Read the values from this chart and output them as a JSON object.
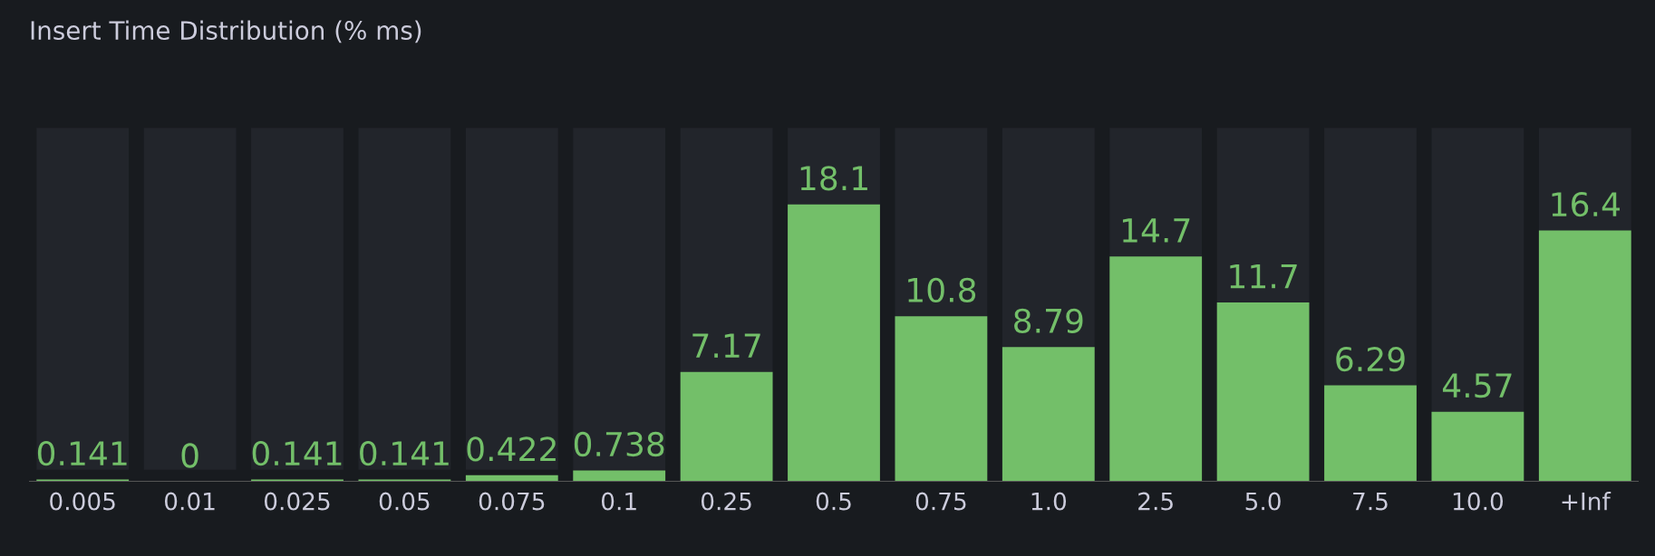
{
  "chart_data": {
    "type": "bar",
    "title": "Insert Time Distribution (% ms)",
    "categories": [
      "0.005",
      "0.01",
      "0.025",
      "0.05",
      "0.075",
      "0.1",
      "0.25",
      "0.5",
      "0.75",
      "1.0",
      "2.5",
      "5.0",
      "7.5",
      "10.0",
      "+Inf"
    ],
    "values": [
      0.141,
      0,
      0.141,
      0.141,
      0.422,
      0.738,
      7.17,
      18.1,
      10.8,
      8.79,
      14.7,
      11.7,
      6.29,
      4.57,
      16.4
    ],
    "color": "#73bf69",
    "data_labels": true,
    "tick_labels": "x"
  }
}
